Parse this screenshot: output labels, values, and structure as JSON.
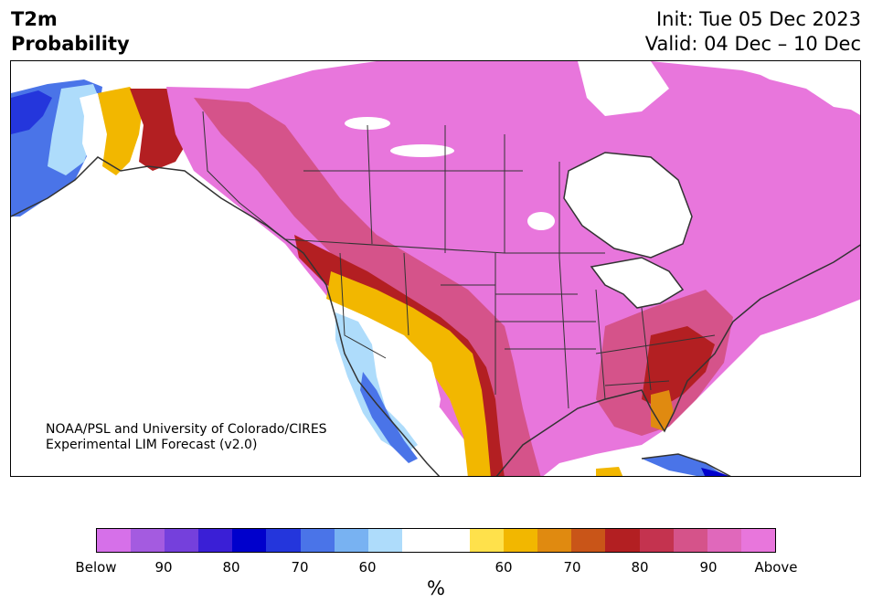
{
  "header": {
    "variable": "T2m",
    "metric": "Probability",
    "init": "Init: Tue 05 Dec 2023",
    "valid": "Valid: 04 Dec – 10 Dec"
  },
  "credit": {
    "line1": "NOAA/PSL and University of Colorado/CIRES",
    "line2": "Experimental LIM Forecast (v2.0)"
  },
  "legend": {
    "unit": "%",
    "colors": [
      "#d670e9",
      "#a45be0",
      "#7540dc",
      "#3a1fd6",
      "#0000cc",
      "#2436dc",
      "#4a74e8",
      "#78b2f2",
      "#aedcfb",
      "#ffffff",
      "#ffffff",
      "#ffe14b",
      "#f2b700",
      "#e08a10",
      "#c95518",
      "#b31f22",
      "#c4334f",
      "#d5538a",
      "#e068bb",
      "#e876dc"
    ],
    "tick_labels": [
      "Below",
      "90",
      "80",
      "70",
      "60",
      "60",
      "70",
      "80",
      "90",
      "Above"
    ]
  },
  "map_colors": {
    "above_light": "#e876dc",
    "above_mid": "#d5538a",
    "above_dark": "#b31f22",
    "orange": "#e08a10",
    "yellow": "#f2b700",
    "pale_yellow": "#ffe14b",
    "pale_blue": "#aedcfb",
    "blue": "#4a74e8",
    "deep_blue": "#0000cc",
    "border": "#333333"
  }
}
